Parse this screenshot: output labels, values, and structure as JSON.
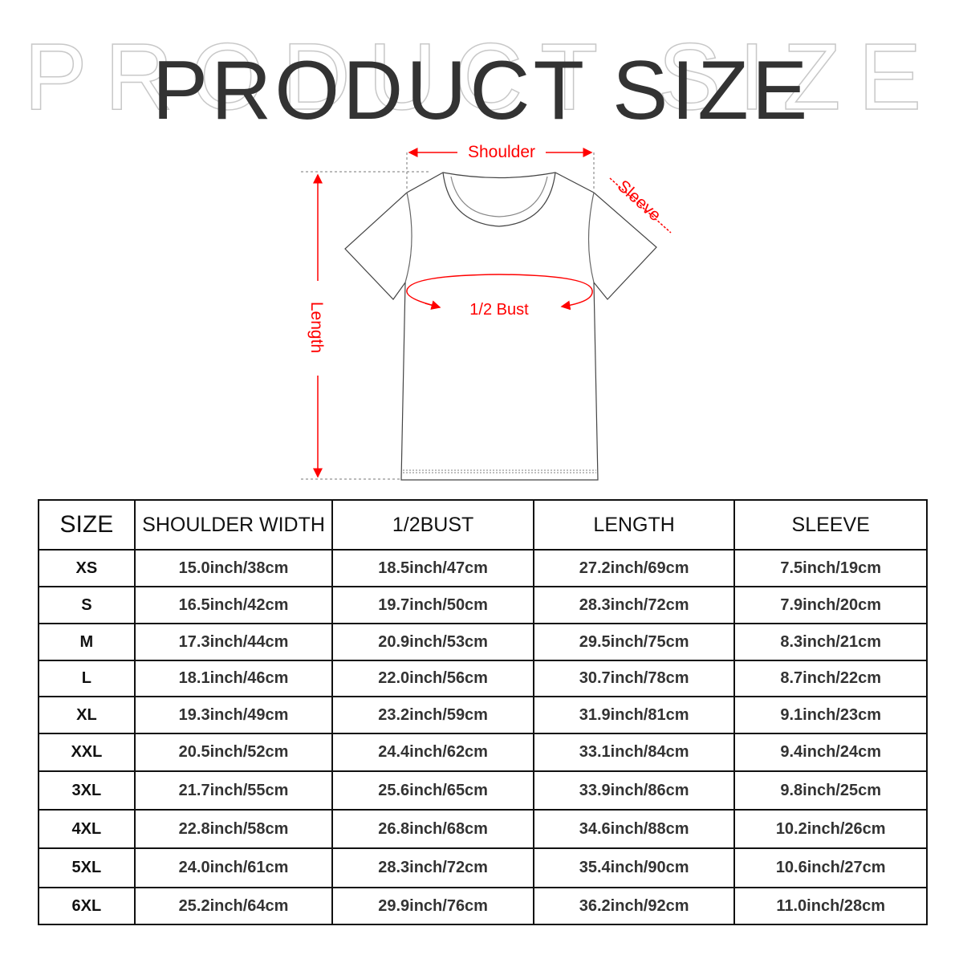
{
  "title": "PRODUCT SIZE",
  "diagram": {
    "shoulder_label": "Shoulder",
    "sleeve_label": "Sleeve",
    "bust_label": "1/2 Bust",
    "length_label": "Length",
    "accent_color": "#ff0000"
  },
  "table": {
    "headers": [
      "SIZE",
      "SHOULDER WIDTH",
      "1/2BUST",
      "LENGTH",
      "SLEEVE"
    ],
    "rows": [
      [
        "XS",
        "15.0inch/38cm",
        "18.5inch/47cm",
        "27.2inch/69cm",
        "7.5inch/19cm"
      ],
      [
        "S",
        "16.5inch/42cm",
        "19.7inch/50cm",
        "28.3inch/72cm",
        "7.9inch/20cm"
      ],
      [
        "M",
        "17.3inch/44cm",
        "20.9inch/53cm",
        "29.5inch/75cm",
        "8.3inch/21cm"
      ],
      [
        "L",
        "18.1inch/46cm",
        "22.0inch/56cm",
        "30.7inch/78cm",
        "8.7inch/22cm"
      ],
      [
        "XL",
        "19.3inch/49cm",
        "23.2inch/59cm",
        "31.9inch/81cm",
        "9.1inch/23cm"
      ],
      [
        "XXL",
        "20.5inch/52cm",
        "24.4inch/62cm",
        "33.1inch/84cm",
        "9.4inch/24cm"
      ],
      [
        "3XL",
        "21.7inch/55cm",
        "25.6inch/65cm",
        "33.9inch/86cm",
        "9.8inch/25cm"
      ],
      [
        "4XL",
        "22.8inch/58cm",
        "26.8inch/68cm",
        "34.6inch/88cm",
        "10.2inch/26cm"
      ],
      [
        "5XL",
        "24.0inch/61cm",
        "28.3inch/72cm",
        "35.4inch/90cm",
        "10.6inch/27cm"
      ],
      [
        "6XL",
        "25.2inch/64cm",
        "29.9inch/76cm",
        "36.2inch/92cm",
        "11.0inch/28cm"
      ]
    ]
  }
}
